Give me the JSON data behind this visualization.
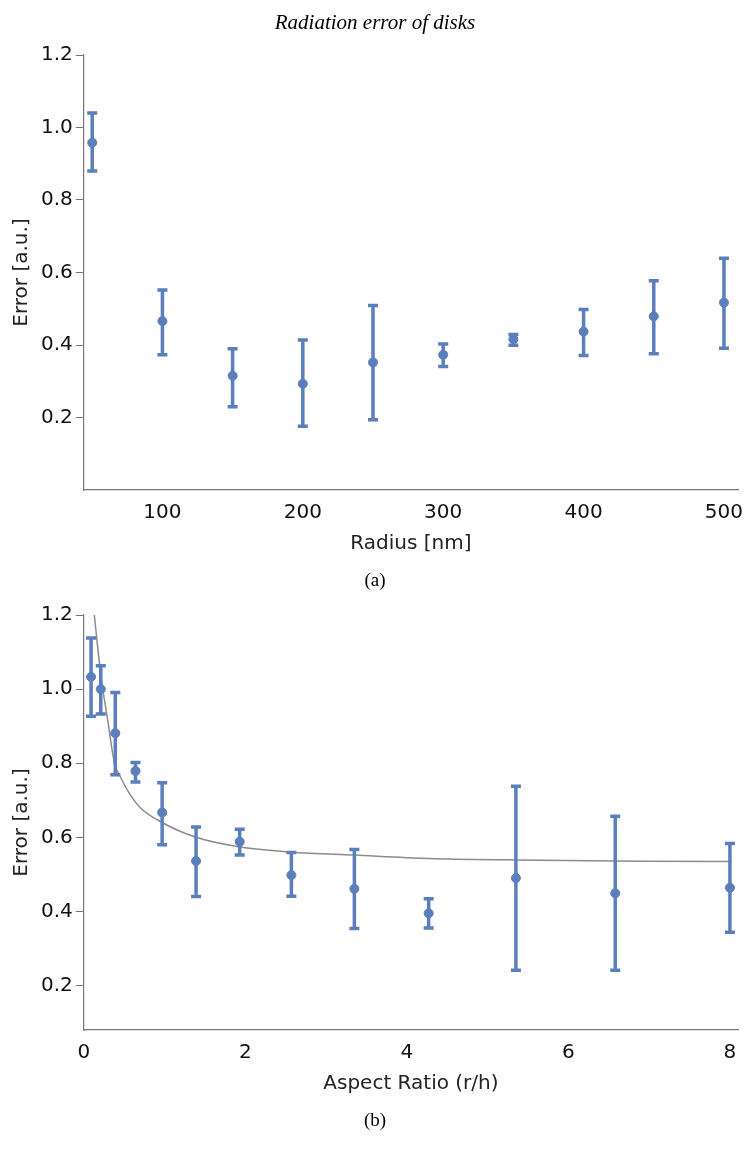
{
  "chart_data": [
    {
      "type": "scatter",
      "title": "Radiation error of disks",
      "xlabel": "Radius [nm]",
      "ylabel": "Error [a.u.]",
      "annotations": [
        "(a)"
      ],
      "grid": false,
      "legend": false,
      "marker": "circle",
      "xlim": [
        44,
        510
      ],
      "xticks": [
        100,
        200,
        300,
        400,
        500
      ],
      "ylim": [
        0,
        1.2
      ],
      "yticks": [
        0.2,
        0.4,
        0.6,
        0.8,
        {
          "value": 1,
          "label": "1.0"
        },
        1.2
      ],
      "series": [
        {
          "color": "#5b7fbd",
          "x": [
            50,
            100,
            150,
            200,
            250,
            300,
            350,
            400,
            450,
            500
          ],
          "values": [
            0.958,
            0.466,
            0.315,
            0.293,
            0.352,
            0.373,
            0.416,
            0.437,
            0.479,
            0.517
          ],
          "errors": [
            [
              0.88,
              1.04
            ],
            [
              0.373,
              0.552
            ],
            [
              0.23,
              0.39
            ],
            [
              0.176,
              0.414
            ],
            [
              0.194,
              0.509
            ],
            [
              0.341,
              0.403
            ],
            [
              0.399,
              0.429
            ],
            [
              0.371,
              0.498
            ],
            [
              0.376,
              0.577
            ],
            [
              0.391,
              0.639
            ]
          ]
        }
      ]
    },
    {
      "type": "scatter",
      "xlabel": "Aspect Ratio (r/h)",
      "ylabel": "Error [a.u.]",
      "annotations": [
        "(b)"
      ],
      "grid": false,
      "legend": false,
      "marker": "circle",
      "xlim": [
        0,
        8.1
      ],
      "xticks": [
        0,
        2,
        4,
        6,
        8
      ],
      "ylim": [
        0.08,
        1.2
      ],
      "yticks": [
        0.2,
        0.4,
        0.6,
        0.8,
        {
          "value": 1,
          "label": "1.0"
        },
        1.2
      ],
      "series": [
        {
          "color": "#5b7fbd",
          "x": [
            0.09,
            0.21,
            0.39,
            0.64,
            0.97,
            1.39,
            1.93,
            2.57,
            3.35,
            4.27,
            5.35,
            6.58,
            8
          ],
          "values": [
            1.033,
            1.0,
            0.881,
            0.779,
            0.667,
            0.536,
            0.588,
            0.498,
            0.461,
            0.395,
            0.49,
            0.449,
            0.464
          ],
          "errors": [
            [
              0.927,
              1.138
            ],
            [
              0.933,
              1.063
            ],
            [
              0.769,
              0.991
            ],
            [
              0.749,
              0.802
            ],
            [
              0.58,
              0.747
            ],
            [
              0.44,
              0.628
            ],
            [
              0.552,
              0.622
            ],
            [
              0.441,
              0.559
            ],
            [
              0.354,
              0.567
            ],
            [
              0.355,
              0.434
            ],
            [
              0.241,
              0.738
            ],
            [
              0.241,
              0.657
            ],
            [
              0.344,
              0.583
            ]
          ]
        },
        {
          "type": "line",
          "color": "#8c8c8c",
          "marker": "none",
          "x": [
            0.13,
            0.21,
            0.3,
            0.38,
            0.46,
            0.56,
            0.7,
            0.97,
            1.39,
            1.93,
            2.57,
            3.35,
            4.27,
            5.35,
            6.58,
            8
          ],
          "values": [
            1.2,
            1.04,
            0.91,
            0.8,
            0.76,
            0.72,
            0.68,
            0.64,
            0.6,
            0.574,
            0.56,
            0.552,
            0.543,
            0.539,
            0.536,
            0.535
          ]
        }
      ]
    }
  ]
}
